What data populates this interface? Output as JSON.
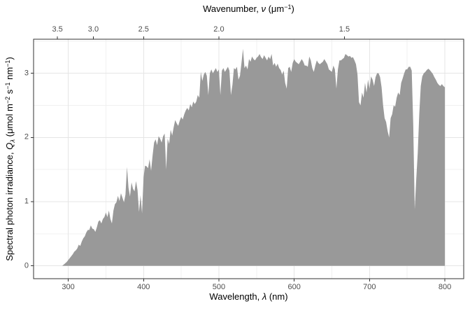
{
  "figure": {
    "background": "#ffffff"
  },
  "colors": {
    "fill": "#999999",
    "grid_major": "#e5e5e5",
    "grid_minor": "#f0f0f0",
    "panel_border": "#333333",
    "tick_mark": "#333333",
    "tick_label": "#4d4d4d",
    "axis_title": "#000000"
  },
  "axes": {
    "top": {
      "title_plain": "Wavenumber, ν (μm−1)",
      "title_segments": [
        {
          "t": "Wavenumber, "
        },
        {
          "t": "ν",
          "style": "i"
        },
        {
          "t": " (μm"
        },
        {
          "t": "−1",
          "style": "sup"
        },
        {
          "t": ")"
        }
      ],
      "ticks": [
        {
          "label": "3.5",
          "value": 3.5
        },
        {
          "label": "3.0",
          "value": 3.0
        },
        {
          "label": "2.5",
          "value": 2.5
        },
        {
          "label": "2.0",
          "value": 2.0
        },
        {
          "label": "1.5",
          "value": 1.5
        }
      ]
    },
    "bottom": {
      "title_plain": "Wavelength, λ (nm)",
      "title_segments": [
        {
          "t": "Wavelength, "
        },
        {
          "t": "λ",
          "style": "i"
        },
        {
          "t": " (nm)"
        }
      ],
      "ticks": [
        {
          "label": "300",
          "value": 300
        },
        {
          "label": "400",
          "value": 400
        },
        {
          "label": "500",
          "value": 500
        },
        {
          "label": "600",
          "value": 600
        },
        {
          "label": "700",
          "value": 700
        },
        {
          "label": "800",
          "value": 800
        }
      ]
    },
    "left": {
      "title_plain": "Spectral photon irradiance, Qλ (μmol m−2 s−1 nm−1)",
      "title_segments": [
        {
          "t": "Spectral photon irradiance, "
        },
        {
          "t": "Q",
          "style": "i"
        },
        {
          "t": "λ",
          "style": "isub"
        },
        {
          "t": " (μmol m"
        },
        {
          "t": "−2",
          "style": "sup"
        },
        {
          "t": " s"
        },
        {
          "t": "−1",
          "style": "sup"
        },
        {
          "t": " nm"
        },
        {
          "t": "−1",
          "style": "sup"
        },
        {
          "t": ")"
        }
      ],
      "ticks": [
        {
          "label": "0",
          "value": 0
        },
        {
          "label": "1",
          "value": 1
        },
        {
          "label": "2",
          "value": 2
        },
        {
          "label": "3",
          "value": 3
        }
      ]
    }
  },
  "chart_data": {
    "type": "area",
    "title": "",
    "xlabel": "Wavelength, λ (nm)",
    "ylabel": "Spectral photon irradiance, Qλ (μmol m−2 s−1 nm−1)",
    "x2label": "Wavenumber, ν (μm−1)",
    "fill_color": "#999999",
    "grid": true,
    "legend": "none",
    "xlim": [
      254,
      825
    ],
    "ylim": [
      -0.2,
      3.53
    ],
    "x_ticks_major": [
      300,
      400,
      500,
      600,
      700,
      800
    ],
    "x_ticks_minor": [
      350,
      450,
      550,
      650,
      750
    ],
    "y_ticks_major": [
      0,
      1,
      2,
      3
    ],
    "y_ticks_minor": [
      0.5,
      1.5,
      2.5,
      3.5
    ],
    "x2_ticks_wavenumber_per_um": [
      3.5,
      3.0,
      2.5,
      2.0,
      1.5
    ],
    "x_start": 292,
    "x_step": 2,
    "x_end": 800,
    "values": [
      0,
      0.02,
      0.04,
      0.06,
      0.09,
      0.12,
      0.15,
      0.18,
      0.22,
      0.24,
      0.27,
      0.33,
      0.31,
      0.38,
      0.43,
      0.46,
      0.52,
      0.56,
      0.56,
      0.63,
      0.58,
      0.57,
      0.53,
      0.6,
      0.69,
      0.71,
      0.66,
      0.73,
      0.76,
      0.83,
      0.76,
      0.86,
      0.73,
      0.66,
      0.86,
      0.96,
      0.99,
      1.09,
      1.01,
      1.13,
      1.06,
      0.99,
      1.11,
      1.54,
      1.22,
      1.08,
      1.3,
      1.2,
      1.16,
      1.32,
      1.18,
      0.84,
      1.1,
      0.82,
      1.38,
      1.56,
      1.55,
      1.52,
      1.66,
      1.48,
      1.72,
      1.92,
      1.97,
      1.88,
      2.02,
      1.98,
      1.92,
      2.02,
      2.06,
      1.5,
      1.98,
      1.9,
      2.12,
      2.03,
      2.16,
      2.27,
      2.22,
      2.18,
      2.26,
      2.32,
      2.28,
      2.36,
      2.42,
      2.46,
      2.42,
      2.52,
      2.47,
      2.56,
      2.52,
      2.56,
      2.66,
      2.62,
      3.02,
      2.88,
      2.98,
      3.02,
      2.96,
      2.66,
      3,
      3.06,
      3,
      3.04,
      3.08,
      3.02,
      3.06,
      2.66,
      3.04,
      3.08,
      3.02,
      3.06,
      3.1,
      3.04,
      2.66,
      2.82,
      3.08,
      3.06,
      3.1,
      2.9,
      2.96,
      3.16,
      3.38,
      3.08,
      3.12,
      3.06,
      3.22,
      3.18,
      3.26,
      3.22,
      3.2,
      3.24,
      3.26,
      3.3,
      3.25,
      3.22,
      3.28,
      3.24,
      3.2,
      3.26,
      3.22,
      3.3,
      3.12,
      3.16,
      3.1,
      3.15,
      3.08,
      3.05,
      2.98,
      3.04,
      2.85,
      2.76,
      3.08,
      3.1,
      3.02,
      3.16,
      3.22,
      3.18,
      3.16,
      3.14,
      3.18,
      3.22,
      3.18,
      3.12,
      3.12,
      3.1,
      3.26,
      3.2,
      3.08,
      3.02,
      3.12,
      3.2,
      3.16,
      3.14,
      3.16,
      3.18,
      3.22,
      3.18,
      3.14,
      3.06,
      3.04,
      3.02,
      3.12,
      3.06,
      2.76,
      3.06,
      3.2,
      3.2,
      3.22,
      3.24,
      3.3,
      3.28,
      3.26,
      3.27,
      3.24,
      3.25,
      3.2,
      3.14,
      2.98,
      2.55,
      2.5,
      2.7,
      2.62,
      2.85,
      2.7,
      2.9,
      2.76,
      2.95,
      2.9,
      2.8,
      2.94,
      3,
      3,
      2.94,
      2.78,
      2.5,
      2.3,
      2.24,
      2.1,
      2,
      2.3,
      2.36,
      2.5,
      2.48,
      2.62,
      2.7,
      2.66,
      2.85,
      2.92,
      3,
      3.06,
      3.06,
      3.1,
      3.1,
      3.04,
      2.2,
      0.88,
      1.35,
      1.76,
      2.36,
      2.8,
      2.95,
      3,
      3.02,
      3.05,
      3.07,
      3.05,
      3.02,
      2.99,
      2.94,
      2.9,
      2.85,
      2.82,
      2.8,
      2.83,
      2.8,
      2.78
    ]
  }
}
